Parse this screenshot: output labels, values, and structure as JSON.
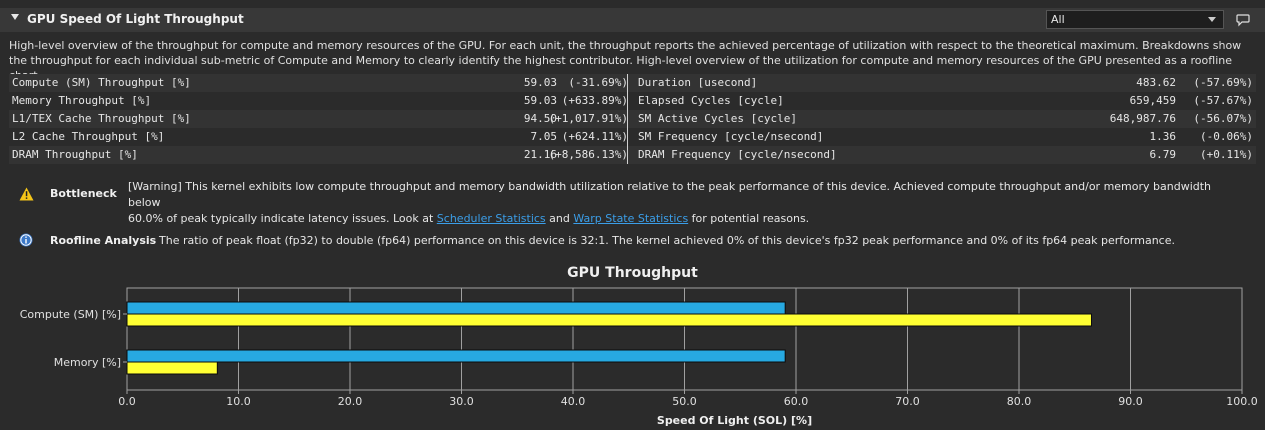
{
  "section": {
    "title": "GPU Speed Of Light Throughput",
    "filter_value": "All"
  },
  "description": "High-level overview of the throughput for compute and memory resources of the GPU. For each unit, the throughput reports the achieved percentage of utilization with respect to the theoretical maximum. Breakdowns show the throughput for each individual sub-metric of Compute and Memory to clearly identify the highest contributor. High-level overview of the utilization for compute and memory resources of the GPU presented as a roofline chart.",
  "metrics_left": [
    {
      "name": "Compute (SM) Throughput [%]",
      "value": "59.03",
      "delta": "(-31.69%)"
    },
    {
      "name": "Memory Throughput [%]",
      "value": "59.03",
      "delta": "(+633.89%)"
    },
    {
      "name": "L1/TEX Cache Throughput [%]",
      "value": "94.50",
      "delta": "(+1,017.91%)"
    },
    {
      "name": "L2 Cache Throughput [%]",
      "value": "7.05",
      "delta": "(+624.11%)"
    },
    {
      "name": "DRAM Throughput [%]",
      "value": "21.16",
      "delta": "(+8,586.13%)"
    }
  ],
  "metrics_right": [
    {
      "name": "Duration [usecond]",
      "value": "483.62",
      "delta": "(-57.69%)"
    },
    {
      "name": "Elapsed Cycles [cycle]",
      "value": "659,459",
      "delta": "(-57.67%)"
    },
    {
      "name": "SM Active Cycles [cycle]",
      "value": "648,987.76",
      "delta": "(-56.07%)"
    },
    {
      "name": "SM Frequency [cycle/nsecond]",
      "value": "1.36",
      "delta": "(-0.06%)"
    },
    {
      "name": "DRAM Frequency [cycle/nsecond]",
      "value": "6.79",
      "delta": "(+0.11%)"
    }
  ],
  "bottleneck": {
    "title": "Bottleneck",
    "text_line1": "[Warning] This kernel exhibits low compute throughput and memory bandwidth utilization relative to the peak performance of this device. Achieved compute throughput and/or memory bandwidth below",
    "text_line2_pre": "60.0% of peak typically indicate latency issues. Look at ",
    "link1": "Scheduler Statistics",
    "text_and": " and ",
    "link2": "Warp State Statistics",
    "text_end": " for potential reasons."
  },
  "roofline": {
    "title": "Roofline Analysis",
    "text": "The ratio of peak float (fp32) to double (fp64) performance on this device is 32:1. The kernel achieved 0% of this device's fp32 peak performance and 0% of its fp64 peak performance."
  },
  "chart_data": {
    "type": "bar",
    "orientation": "horizontal",
    "title": "GPU Throughput",
    "xlabel": "Speed Of Light (SOL) [%]",
    "ylabel": "",
    "xlim": [
      0,
      100
    ],
    "xticks": [
      "0.0",
      "10.0",
      "20.0",
      "30.0",
      "40.0",
      "50.0",
      "60.0",
      "70.0",
      "80.0",
      "90.0",
      "100.0"
    ],
    "categories": [
      "Compute (SM) [%]",
      "Memory [%]"
    ],
    "series": [
      {
        "values": [
          59.03,
          59.03
        ],
        "color": "#27a9e1"
      },
      {
        "values": [
          86.5,
          8.1
        ],
        "color": "#ffff33"
      }
    ],
    "grid": true
  }
}
